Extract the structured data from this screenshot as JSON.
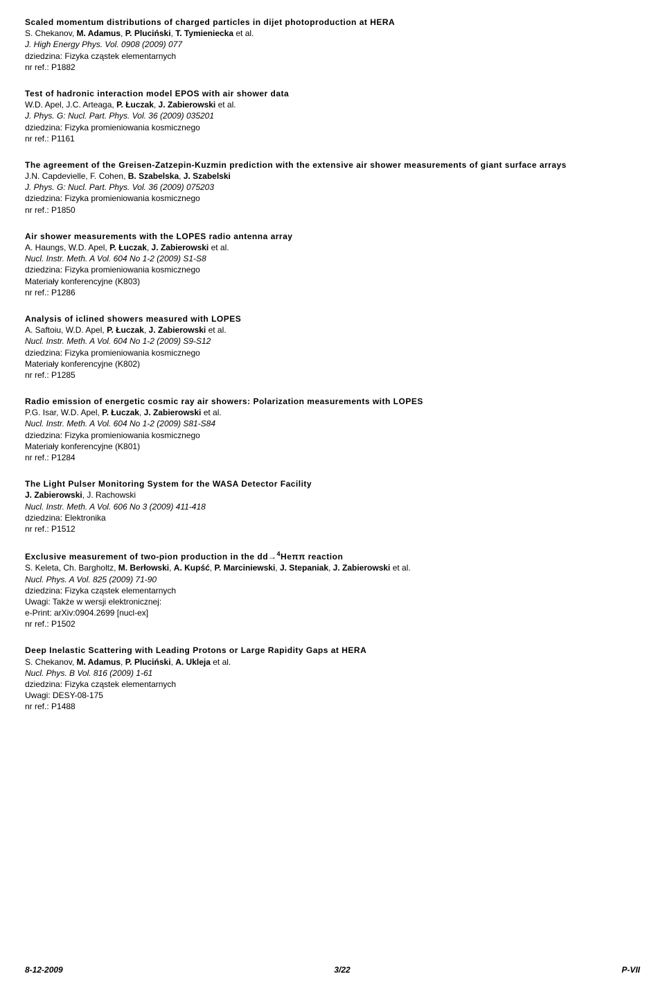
{
  "entries": [
    {
      "title": "Scaled momentum distributions of charged particles in dijet photoproduction at HERA",
      "authors_html": "S. Chekanov, <b>M. Adamus</b>, <b>P. Pluciński</b>, <b>T. Tymieniecka</b> et al.",
      "journal": "J. High Energy Phys. Vol. 0908 (2009) 077",
      "lines": [
        "dziedzina: Fizyka cząstek elementarnych",
        "nr ref.: P1882"
      ]
    },
    {
      "title": "Test of hadronic interaction model EPOS with air shower data",
      "authors_html": "W.D. Apel, J.C. Arteaga, <b>P. Łuczak</b>, <b>J. Zabierowski</b> et al.",
      "journal": "J. Phys. G: Nucl. Part. Phys. Vol. 36 (2009) 035201",
      "lines": [
        "dziedzina: Fizyka promieniowania kosmicznego",
        "nr ref.: P1161"
      ]
    },
    {
      "title": "The agreement of the Greisen-Zatzepin-Kuzmin prediction with the extensive air shower measurements of giant surface arrays",
      "authors_html": "J.N. Capdevielle, F. Cohen, <b>B. Szabelska</b>, <b>J. Szabelski</b>",
      "journal": "J. Phys. G: Nucl. Part. Phys. Vol. 36 (2009) 075203",
      "lines": [
        "dziedzina: Fizyka promieniowania kosmicznego",
        "nr ref.: P1850"
      ]
    },
    {
      "title": "Air shower measurements with the LOPES radio antenna array",
      "authors_html": "A. Haungs, W.D. Apel, <b>P. Łuczak</b>, <b>J. Zabierowski</b> et al.",
      "journal": "Nucl. Instr. Meth. A Vol. 604 No 1-2 (2009) S1-S8",
      "lines": [
        "dziedzina: Fizyka promieniowania kosmicznego",
        "Materiały konferencyjne (K803)",
        "nr ref.: P1286"
      ]
    },
    {
      "title": "Analysis of iclined showers measured with LOPES",
      "authors_html": "A. Saftoiu, W.D. Apel, <b>P. Łuczak</b>, <b>J. Zabierowski</b> et al.",
      "journal": "Nucl. Instr. Meth. A Vol. 604 No 1-2 (2009) S9-S12",
      "lines": [
        "dziedzina: Fizyka promieniowania kosmicznego",
        "Materiały konferencyjne (K802)",
        "nr ref.: P1285"
      ]
    },
    {
      "title": "Radio emission of energetic cosmic ray air showers: Polarization measurements with LOPES",
      "authors_html": "P.G. Isar, W.D. Apel, <b>P. Łuczak</b>, <b>J. Zabierowski</b> et al.",
      "journal": "Nucl. Instr. Meth. A Vol. 604 No 1-2 (2009) S81-S84",
      "lines": [
        "dziedzina: Fizyka promieniowania kosmicznego",
        "Materiały konferencyjne (K801)",
        "nr ref.: P1284"
      ]
    },
    {
      "title": "The Light Pulser Monitoring System for the WASA Detector Facility",
      "authors_html": "<b>J. Zabierowski</b>, J. Rachowski",
      "journal": "Nucl. Instr. Meth. A Vol. 606 No 3 (2009) 411-418",
      "lines": [
        "dziedzina: Elektronika",
        "nr ref.: P1512"
      ]
    },
    {
      "title_html": "Exclusive measurement of two-pion production in the dd→<span class=\"sup\">4</span>Heππ reaction",
      "authors_html": "S. Keleta, Ch. Bargholtz, <b>M. Berłowski</b>, <b>A. Kupść</b>, <b>P. Marciniewski</b>, <b>J. Stepaniak</b>, <b>J. Zabierowski</b> et al.",
      "journal": "Nucl. Phys. A Vol. 825 (2009) 71-90",
      "lines": [
        "dziedzina: Fizyka cząstek elementarnych",
        "Uwagi: Także w wersji elektronicznej:",
        "e-Print: arXiv:0904.2699 [nucl-ex]",
        "nr ref.: P1502"
      ]
    },
    {
      "title": "Deep Inelastic Scattering with Leading Protons or Large Rapidity Gaps at HERA",
      "authors_html": "S. Chekanov, <b>M. Adamus</b>, <b>P. Pluciński</b>, <b>A. Ukleja</b> et al.",
      "journal": "Nucl. Phys. B Vol. 816 (2009) 1-61",
      "lines": [
        "dziedzina: Fizyka cząstek elementarnych",
        "Uwagi: DESY-08-175",
        "nr ref.: P1488"
      ]
    }
  ],
  "footer": {
    "left": "8-12-2009",
    "center": "3/22",
    "right": "P-VII"
  }
}
